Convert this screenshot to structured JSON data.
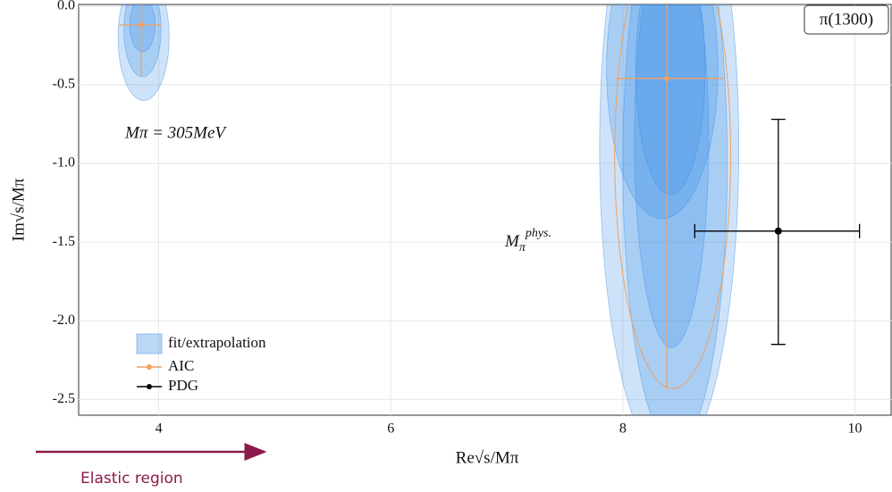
{
  "chart_data": {
    "type": "scatter",
    "xlabel": "Re√s/Mπ",
    "ylabel": "Im√s/Mπ",
    "xlim": [
      3.31,
      10.32
    ],
    "ylim": [
      -2.6,
      0.01
    ],
    "xticks": [
      4,
      6,
      8,
      10
    ],
    "yticks": [
      {
        "value": 0,
        "label": "0.0"
      },
      -0.5,
      {
        "value": -1,
        "label": "-1.0"
      },
      -1.5,
      {
        "value": -2,
        "label": "-2.0"
      },
      -2.5
    ],
    "grid": true,
    "legend": "bottom-left",
    "regions": {
      "name": "fit/extrapolation",
      "color": "#3d8fe8",
      "ellipses": [
        {
          "cx": 3.87,
          "cy": -0.2,
          "rx": 0.22,
          "ry": 0.4
        },
        {
          "cx": 3.86,
          "cy": -0.15,
          "rx": 0.16,
          "ry": 0.3
        },
        {
          "cx": 3.86,
          "cy": -0.12,
          "rx": 0.11,
          "ry": 0.17
        },
        {
          "cx": 8.4,
          "cy": -0.9,
          "rx": 0.6,
          "ry": 2.0
        },
        {
          "cx": 8.45,
          "cy": -1.0,
          "rx": 0.45,
          "ry": 1.8
        },
        {
          "cx": 8.42,
          "cy": -0.85,
          "rx": 0.32,
          "ry": 1.32
        },
        {
          "cx": 8.34,
          "cy": -0.4,
          "rx": 0.48,
          "ry": 0.95
        },
        {
          "cx": 8.41,
          "cy": -0.4,
          "rx": 0.3,
          "ry": 0.8
        }
      ]
    },
    "series": [
      {
        "name": "AIC",
        "color": "#f0a060",
        "x": [
          3.85,
          8.38
        ],
        "values": [
          -0.12,
          -0.46
        ],
        "xerr": [
          [
            0.19,
            0.17
          ],
          [
            0.44,
            0.49
          ]
        ],
        "yerr": [
          [
            0.32,
            0.15
          ],
          [
            1.97,
            0.5
          ]
        ],
        "contour": {
          "cx": 8.43,
          "cy": -0.95,
          "rx": 0.5,
          "ry": 1.48
        }
      },
      {
        "name": "PDG",
        "color": "#000000",
        "x": [
          9.34
        ],
        "values": [
          -1.43
        ],
        "xerr": [
          [
            0.72,
            0.7
          ]
        ],
        "yerr": [
          [
            0.72,
            0.71
          ]
        ]
      }
    ],
    "annotations": [
      "Mπ = 305MeV"
    ],
    "phys_label": {
      "base": "M",
      "sub": "π",
      "sup": "phys."
    },
    "state_label": "π(1300)",
    "footer": "Elastic region"
  }
}
